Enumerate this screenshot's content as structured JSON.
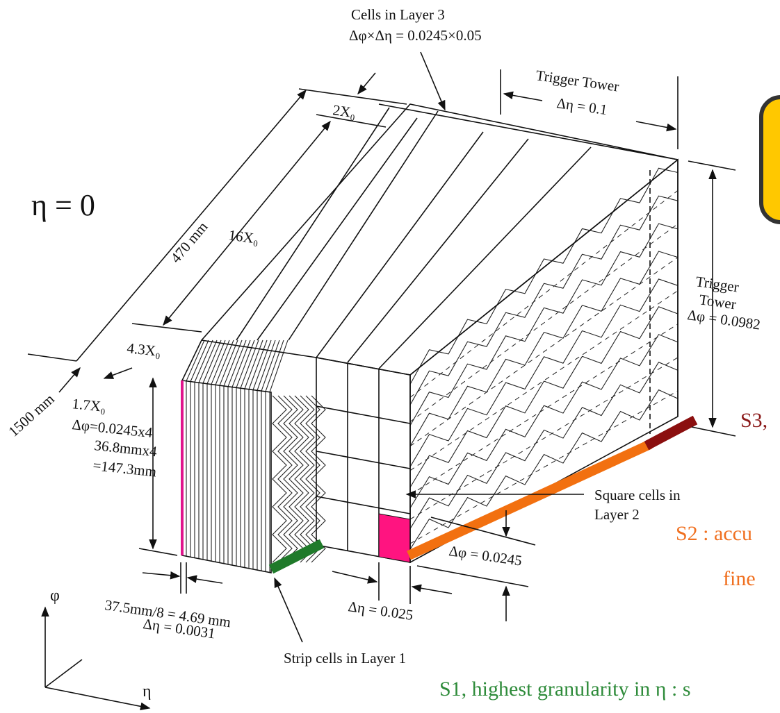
{
  "diagram": {
    "layer3_title": "Cells in Layer 3",
    "layer3_size": "Δφ×Δη = 0.0245×0.05",
    "tower_eta_title": "Trigger Tower",
    "tower_eta_size": "Δη = 0.1",
    "depth_2x0": "2X₀",
    "eta_zero": "η = 0",
    "depth_470": "470 mm",
    "depth_16x0": "16X₀",
    "depth_4_3x0": "4.3X₀",
    "radius_1500": "1500 mm",
    "layer1_depth": "1.7X₀",
    "layer1_dphi": "Δφ=0.0245x4",
    "layer1_mm": "36.8mmx4",
    "layer1_total": "=147.3mm",
    "tower_phi_line1": "Trigger",
    "tower_phi_line2": "Tower",
    "tower_phi_size": "Δφ = 0.0982",
    "s3_note": "S3,",
    "layer2_line1": "Square cells in",
    "layer2_line2": "Layer 2",
    "s2_note_line1": "S2 : accu",
    "s2_note_line2": "fine",
    "layer2_dphi": "Δφ = 0.0245",
    "layer2_deta": "Δη = 0.025",
    "strip_width": "37.5mm/8 = 4.69 mm",
    "strip_deta": "Δη = 0.0031",
    "layer1_title": "Strip cells in Layer 1",
    "s1_note": "S1, highest granularity in η : s",
    "axis_phi": "φ",
    "axis_eta": "η"
  }
}
